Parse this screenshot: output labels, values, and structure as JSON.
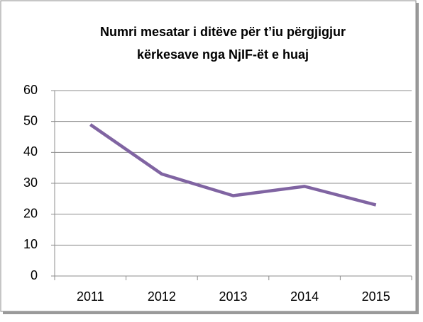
{
  "chart_data": {
    "type": "line",
    "title": [
      "Numri mesatar i ditëve për t’iu përgjigjur",
      "kërkesave nga NjIF-ët e huaj"
    ],
    "categories": [
      "2011",
      "2012",
      "2013",
      "2014",
      "2015"
    ],
    "series": [
      {
        "name": "Numri mesatar",
        "color": "#8064a2",
        "values": [
          49,
          33,
          26,
          29,
          23
        ]
      }
    ],
    "ylim": [
      0,
      60
    ],
    "yticks": [
      0,
      10,
      20,
      30,
      40,
      50,
      60
    ],
    "grid": true
  }
}
